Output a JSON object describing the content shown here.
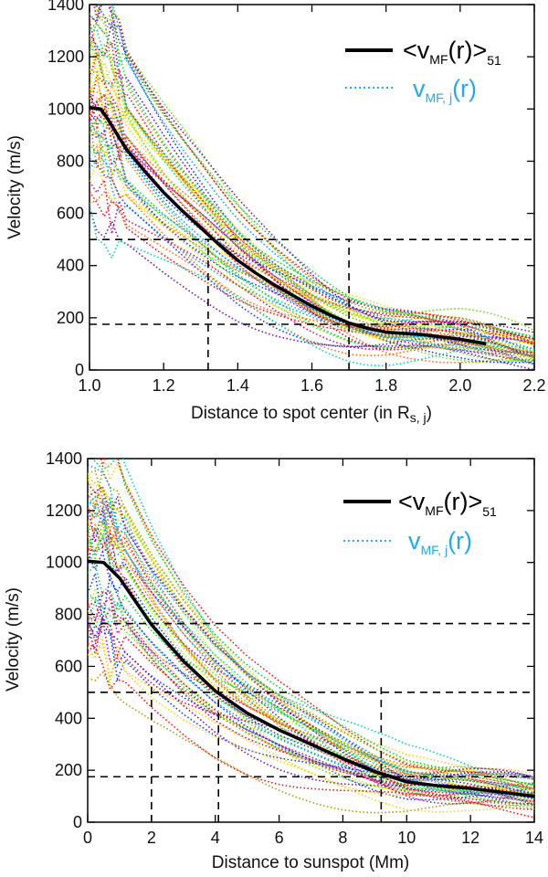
{
  "chart_data": [
    {
      "type": "line",
      "xlabel": "Distance to spot center (in R",
      "xlabel_sub": "s, j",
      "xlabel_end": ")",
      "ylabel": "Velocity (m/s)",
      "xlim": [
        1.0,
        2.2
      ],
      "ylim": [
        0,
        1400
      ],
      "xticks": [
        "1.0",
        "1.2",
        "1.4",
        "1.6",
        "1.8",
        "2.0",
        "2.2"
      ],
      "yticks": [
        "0",
        "200",
        "400",
        "600",
        "800",
        "1000",
        "1200",
        "1400"
      ],
      "legend": {
        "mean_label": "<v",
        "mean_sub": "MF",
        "mean_tail": "(r)>",
        "mean_count": "51",
        "indiv_label": "v",
        "indiv_sub": "MF, j",
        "indiv_tail": "(r)"
      },
      "mean_curve": {
        "x": [
          1.0,
          1.03,
          1.05,
          1.08,
          1.1,
          1.15,
          1.2,
          1.25,
          1.3,
          1.35,
          1.4,
          1.45,
          1.5,
          1.55,
          1.6,
          1.65,
          1.7,
          1.75,
          1.8,
          1.9,
          2.0,
          2.07
        ],
        "y": [
          1005,
          1000,
          960,
          890,
          845,
          760,
          680,
          610,
          545,
          480,
          420,
          370,
          325,
          285,
          245,
          210,
          180,
          160,
          145,
          135,
          118,
          100
        ]
      },
      "guides": {
        "x": [
          1.32,
          1.7
        ],
        "y": [
          500,
          175
        ]
      },
      "individual_xmax": 2.2
    },
    {
      "type": "line",
      "xlabel": "Distance to sunspot (Mm)",
      "ylabel": "Velocity (m/s)",
      "xlim": [
        0,
        14
      ],
      "ylim": [
        0,
        1400
      ],
      "xticks": [
        "0",
        "2",
        "4",
        "6",
        "8",
        "10",
        "12",
        "14"
      ],
      "yticks": [
        "0",
        "200",
        "400",
        "600",
        "800",
        "1000",
        "1200",
        "1400"
      ],
      "legend": {
        "mean_label": "<v",
        "mean_sub": "MF",
        "mean_tail": "(r)>",
        "mean_count": "51",
        "indiv_label": "v",
        "indiv_sub": "MF, j",
        "indiv_tail": "(r)"
      },
      "mean_curve": {
        "x": [
          0,
          0.5,
          1,
          1.5,
          2,
          3,
          4,
          5,
          6,
          7,
          8,
          9,
          10,
          11,
          12,
          13,
          14
        ],
        "y": [
          1005,
          1000,
          940,
          850,
          760,
          620,
          505,
          420,
          355,
          300,
          245,
          195,
          155,
          140,
          130,
          115,
          100
        ]
      },
      "guides": {
        "x": [
          2.0,
          4.1,
          9.2
        ],
        "y": [
          765,
          500,
          175
        ]
      },
      "individual_xmax": 14
    }
  ],
  "palette": [
    "#ff0000",
    "#ff6600",
    "#ffcc00",
    "#ccee00",
    "#66dd00",
    "#00cc33",
    "#00ccaa",
    "#0099ff",
    "#0033ff",
    "#6600cc",
    "#cc0066",
    "#999900"
  ],
  "legend_color": "#22aaee"
}
